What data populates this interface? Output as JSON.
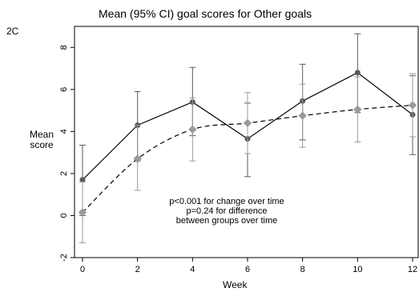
{
  "panel_tag": "2C",
  "chart_data": {
    "type": "line",
    "title": "Mean (95% CI) goal scores for Other goals",
    "xlabel": "Week",
    "ylabel": [
      "Mean",
      "score"
    ],
    "xlim": [
      0,
      12
    ],
    "ylim": [
      -2,
      9
    ],
    "x_ticks": [
      "0",
      "2",
      "4",
      "6",
      "8",
      "10",
      "12"
    ],
    "y_ticks": [
      "-2",
      "0",
      "2",
      "4",
      "6",
      "8"
    ],
    "grid": false,
    "legend": "none",
    "series": [
      {
        "line_style": "solid",
        "marker": "circle",
        "color": "#595959",
        "points": [
          {
            "x": 0,
            "y": 1.7,
            "lo": 0.0,
            "hi": 3.35
          },
          {
            "x": 2,
            "y": 4.3,
            "lo": 2.6,
            "hi": 5.9
          },
          {
            "x": 4,
            "y": 5.4,
            "lo": 3.8,
            "hi": 7.05
          },
          {
            "x": 6,
            "y": 3.65,
            "lo": 1.85,
            "hi": 5.35
          },
          {
            "x": 8,
            "y": 5.45,
            "lo": 3.6,
            "hi": 7.2
          },
          {
            "x": 10,
            "y": 6.8,
            "lo": 4.9,
            "hi": 8.65
          },
          {
            "x": 12,
            "y": 4.8,
            "lo": 2.9,
            "hi": 6.65
          }
        ]
      },
      {
        "line_style": "dashed",
        "marker": "diamond",
        "color": "#9a9a9a",
        "points": [
          {
            "x": 0,
            "y": 0.15,
            "lo": -1.3,
            "hi": 1.6
          },
          {
            "x": 2,
            "y": 2.7,
            "lo": 1.2,
            "hi": 4.3
          },
          {
            "x": 4,
            "y": 4.1,
            "lo": 2.6,
            "hi": 5.6
          },
          {
            "x": 6,
            "y": 4.4,
            "lo": 2.95,
            "hi": 5.85
          },
          {
            "x": 8,
            "y": 4.75,
            "lo": 3.25,
            "hi": 6.25
          },
          {
            "x": 10,
            "y": 5.05,
            "lo": 3.5,
            "hi": 6.6
          },
          {
            "x": 12,
            "y": 5.25,
            "lo": 3.75,
            "hi": 6.75
          }
        ]
      }
    ],
    "annotation": [
      "p<0.001 for change over time",
      "p=0.24 for difference",
      "between groups over time"
    ]
  }
}
